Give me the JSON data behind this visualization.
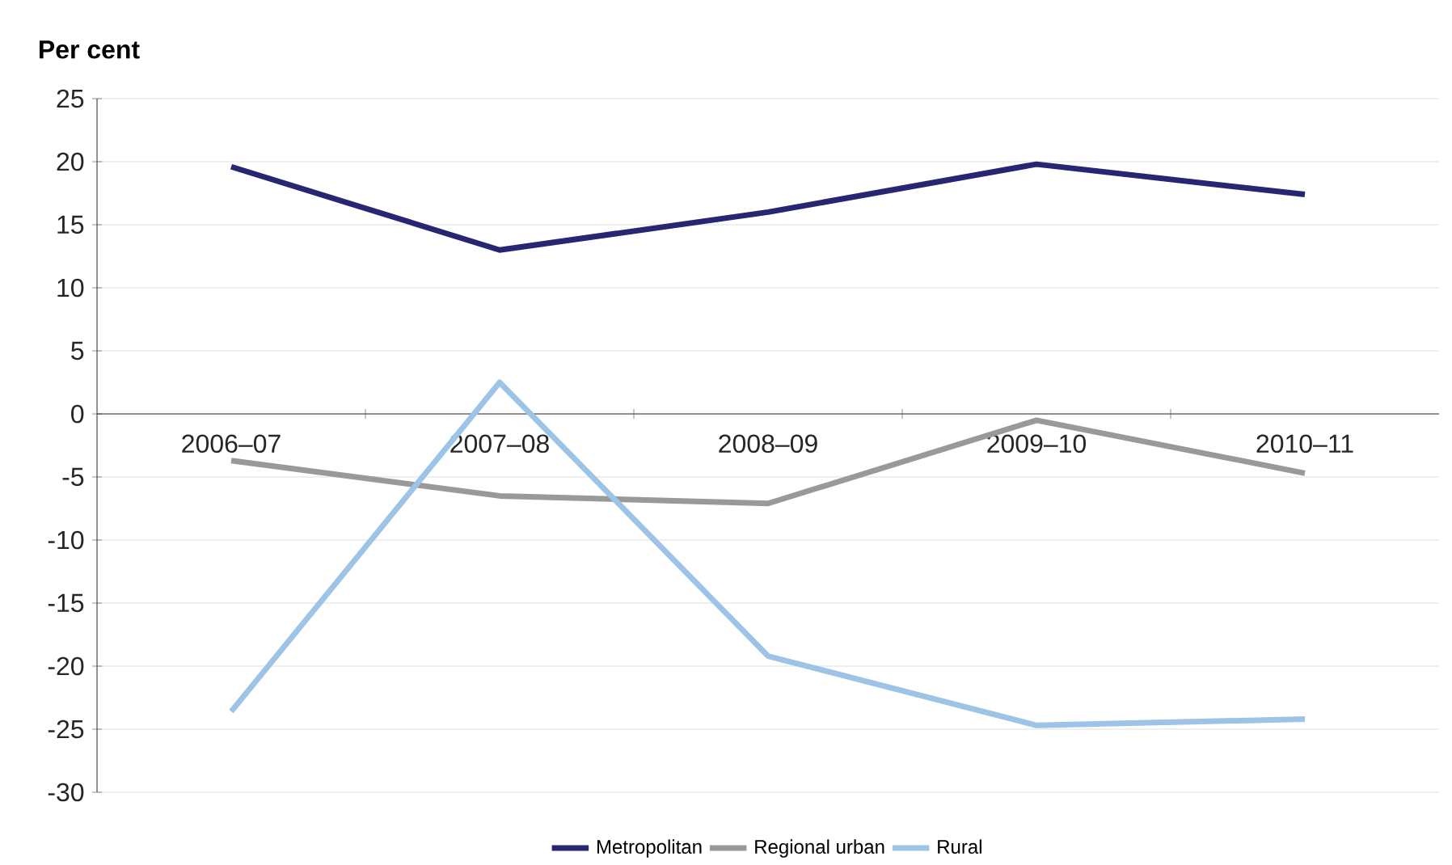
{
  "chart_data": {
    "type": "line",
    "ylabel": "Per cent",
    "categories": [
      "2006–07",
      "2007–08",
      "2008–09",
      "2009–10",
      "2010–11"
    ],
    "series": [
      {
        "name": "Metropolitan",
        "color": "#262673",
        "values": [
          19.6,
          13.0,
          16.0,
          19.8,
          17.4
        ]
      },
      {
        "name": "Regional urban",
        "color": "#999999",
        "values": [
          -3.7,
          -6.5,
          -7.1,
          -0.5,
          -4.7
        ]
      },
      {
        "name": "Rural",
        "color": "#9dc3e6",
        "values": [
          -23.6,
          2.5,
          -19.2,
          -24.7,
          -24.2
        ]
      }
    ],
    "ylim": [
      -30,
      25
    ],
    "yticks": [
      -30,
      -25,
      -20,
      -15,
      -10,
      -5,
      0,
      5,
      10,
      15,
      20,
      25
    ],
    "grid": "y",
    "legend": "bottom"
  }
}
